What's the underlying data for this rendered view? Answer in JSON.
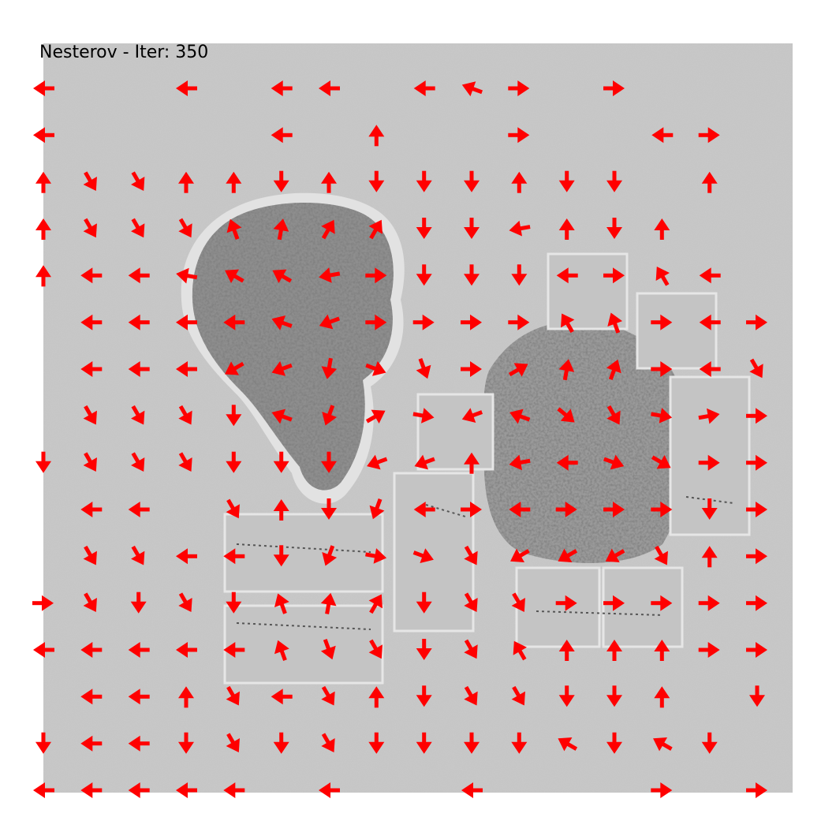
{
  "chart_data": {
    "type": "quiver",
    "title": "Nesterov - Iter: 350",
    "xlabel": "",
    "ylabel": "",
    "grid": false,
    "axes_visible": false,
    "grid_rows": 16,
    "grid_cols": 16,
    "arrow_color": "#ff0000",
    "background": "grayscale optimized image (trees, building blocks)",
    "angles_deg": [
      [
        180,
        null,
        null,
        180,
        null,
        180,
        180,
        null,
        180,
        160,
        0,
        null,
        0,
        null,
        null,
        null
      ],
      [
        180,
        null,
        null,
        null,
        null,
        180,
        null,
        90,
        null,
        null,
        0,
        null,
        null,
        180,
        0,
        null
      ],
      [
        90,
        300,
        300,
        90,
        90,
        270,
        90,
        270,
        270,
        270,
        90,
        270,
        270,
        null,
        90,
        null
      ],
      [
        90,
        300,
        300,
        300,
        110,
        80,
        60,
        60,
        270,
        270,
        190,
        90,
        270,
        90,
        null,
        null
      ],
      [
        90,
        180,
        180,
        170,
        150,
        150,
        190,
        0,
        270,
        270,
        270,
        180,
        0,
        120,
        180,
        null
      ],
      [
        null,
        180,
        180,
        180,
        180,
        160,
        200,
        0,
        0,
        0,
        0,
        120,
        110,
        0,
        180,
        0
      ],
      [
        null,
        180,
        180,
        180,
        210,
        200,
        260,
        340,
        290,
        0,
        30,
        80,
        70,
        0,
        180,
        300
      ],
      [
        null,
        300,
        300,
        300,
        270,
        160,
        250,
        30,
        350,
        200,
        160,
        320,
        300,
        350,
        10,
        0
      ],
      [
        270,
        300,
        300,
        300,
        270,
        270,
        270,
        200,
        200,
        90,
        190,
        180,
        340,
        330,
        0,
        0
      ],
      [
        null,
        180,
        180,
        null,
        300,
        90,
        270,
        250,
        180,
        0,
        180,
        0,
        0,
        0,
        270,
        0
      ],
      [
        null,
        300,
        300,
        180,
        180,
        270,
        250,
        350,
        340,
        300,
        210,
        210,
        210,
        300,
        90,
        0
      ],
      [
        0,
        300,
        270,
        300,
        270,
        110,
        80,
        60,
        270,
        300,
        300,
        0,
        0,
        0,
        0,
        0
      ],
      [
        180,
        180,
        180,
        180,
        180,
        110,
        290,
        300,
        270,
        300,
        120,
        90,
        90,
        90,
        0,
        0
      ],
      [
        null,
        180,
        180,
        90,
        300,
        180,
        300,
        90,
        270,
        300,
        300,
        270,
        270,
        90,
        null,
        270
      ],
      [
        270,
        180,
        180,
        270,
        300,
        270,
        300,
        270,
        270,
        270,
        270,
        150,
        270,
        150,
        270,
        null
      ],
      [
        180,
        180,
        180,
        180,
        180,
        null,
        180,
        null,
        null,
        180,
        null,
        null,
        null,
        0,
        null,
        0
      ]
    ]
  }
}
